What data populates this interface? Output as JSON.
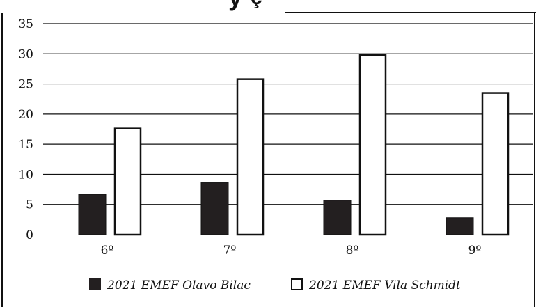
{
  "chart_data": {
    "type": "bar",
    "title": "",
    "xlabel": "",
    "ylabel": "",
    "categories": [
      "6º",
      "7º",
      "8º",
      "9º"
    ],
    "series": [
      {
        "name": "2021 EMEF Olavo Bilac",
        "values": [
          6.7,
          8.6,
          5.7,
          2.8
        ],
        "color": "#231f20",
        "fill": "solid"
      },
      {
        "name": "2021 EMEF Vila Schmidt",
        "values": [
          17.6,
          25.8,
          29.8,
          23.5
        ],
        "color": "#ffffff",
        "fill": "outline"
      }
    ],
    "ylim": [
      0,
      35
    ],
    "yticks": [
      0,
      5,
      10,
      15,
      20,
      25,
      30,
      35
    ],
    "grid": true,
    "legend": "bottom"
  }
}
